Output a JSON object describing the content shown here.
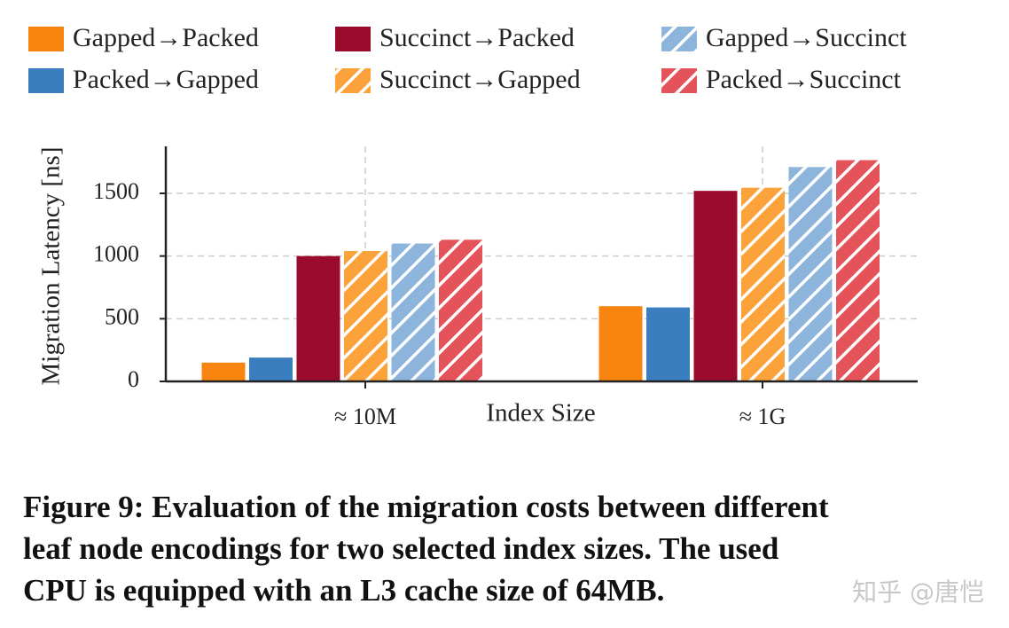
{
  "chart_data": {
    "type": "bar",
    "categories": [
      "≈ 10M",
      "≈ 1G"
    ],
    "xlabel": "Index Size",
    "ylabel": "Migration Latency [ns]",
    "ylim": [
      0,
      1875
    ],
    "yticks": [
      0,
      500,
      1000,
      1500
    ],
    "grid": true,
    "legend": "top",
    "series": [
      {
        "name": "Gapped→Packed",
        "color": "#f7850f",
        "hatch": false,
        "values": [
          150,
          600
        ]
      },
      {
        "name": "Packed→Gapped",
        "color": "#3a7ebf",
        "hatch": false,
        "values": [
          190,
          590
        ]
      },
      {
        "name": "Succinct→Packed",
        "color": "#9a0b2c",
        "hatch": false,
        "values": [
          1000,
          1520
        ]
      },
      {
        "name": "Succinct→Gapped",
        "color": "#fba33a",
        "hatch": true,
        "values": [
          1040,
          1545
        ]
      },
      {
        "name": "Gapped→Succinct",
        "color": "#8db5db",
        "hatch": true,
        "values": [
          1100,
          1710
        ]
      },
      {
        "name": "Packed→Succinct",
        "color": "#e4525a",
        "hatch": true,
        "values": [
          1130,
          1765
        ]
      }
    ]
  },
  "caption": [
    "Figure 9: Evaluation of the migration costs between different",
    "leaf node encodings for two selected index sizes. The used",
    "CPU is equipped with an L3 cache size of 64MB."
  ],
  "watermark": "知乎 @唐恺"
}
